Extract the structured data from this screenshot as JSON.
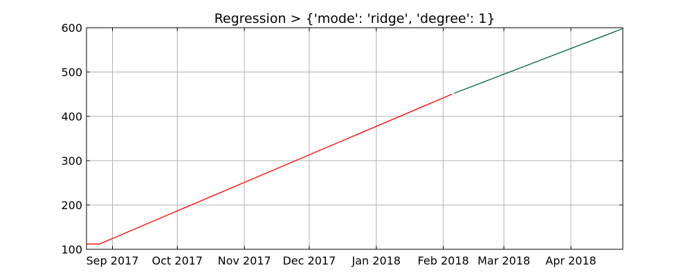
{
  "chart_data": {
    "type": "line",
    "title": "Regression > {'mode': 'ridge', 'degree': 1}",
    "xlabel": "",
    "ylabel": "",
    "x_type": "date",
    "xlim": [
      "2017-08-20",
      "2018-04-25"
    ],
    "ylim": [
      100,
      600
    ],
    "grid": true,
    "x_ticks": [
      {
        "date": "2017-09-01",
        "label": "Sep 2017"
      },
      {
        "date": "2017-10-01",
        "label": "Oct 2017"
      },
      {
        "date": "2017-11-01",
        "label": "Nov 2017"
      },
      {
        "date": "2017-12-01",
        "label": "Dec 2017"
      },
      {
        "date": "2018-01-01",
        "label": "Jan 2018"
      },
      {
        "date": "2018-02-01",
        "label": "Feb 2018"
      },
      {
        "date": "2018-03-01",
        "label": "Mar 2018"
      },
      {
        "date": "2018-04-01",
        "label": "Apr 2018"
      }
    ],
    "y_ticks": [
      100,
      200,
      300,
      400,
      500,
      600
    ],
    "series": [
      {
        "color": "#ff0000",
        "points": [
          {
            "x": "2017-08-20",
            "y": 112
          },
          {
            "x": "2017-08-26",
            "y": 112
          },
          {
            "x": "2018-02-05",
            "y": 450
          }
        ]
      },
      {
        "color": "#006040",
        "points": [
          {
            "x": "2018-02-06",
            "y": 452
          },
          {
            "x": "2018-04-25",
            "y": 598
          }
        ]
      }
    ]
  }
}
